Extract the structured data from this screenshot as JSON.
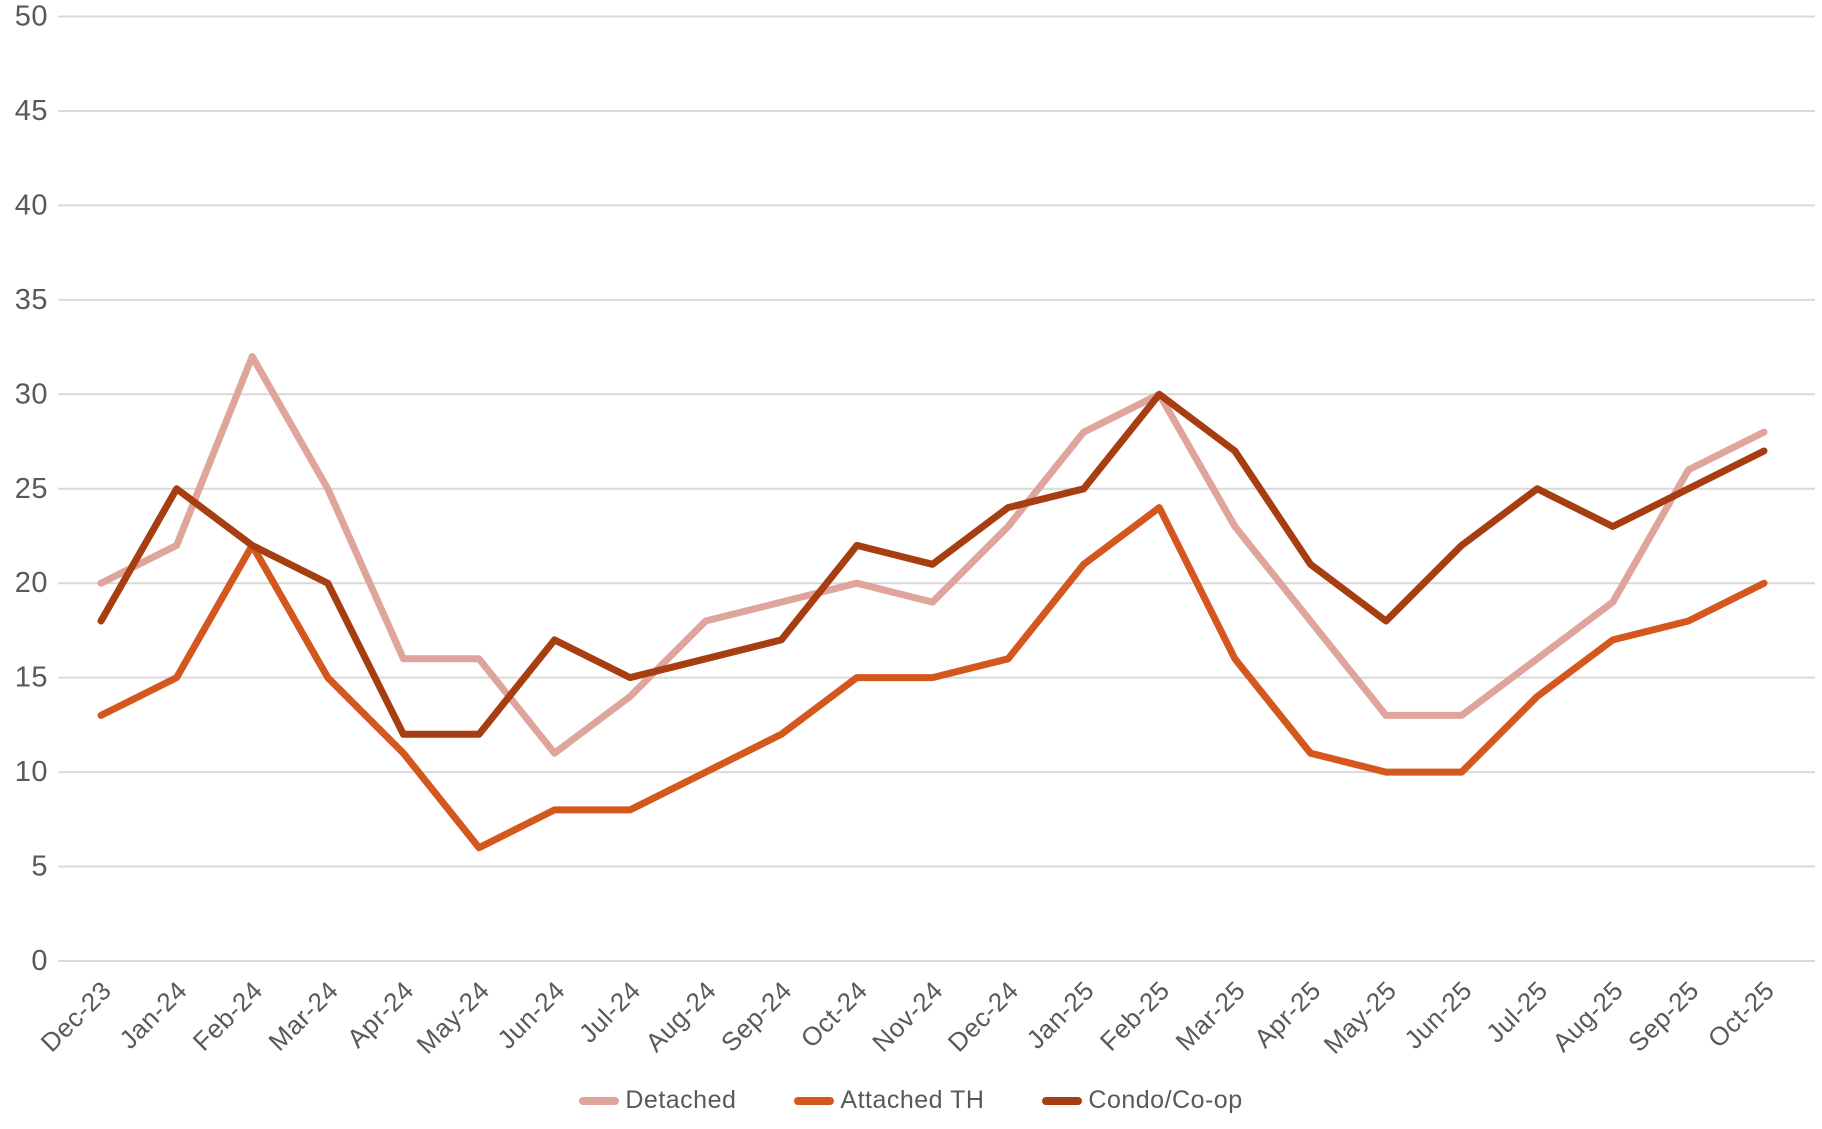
{
  "chart_data": {
    "type": "line",
    "title": "",
    "xlabel": "",
    "ylabel": "",
    "grid": true,
    "legend_position": "bottom",
    "categories": [
      "Dec-23",
      "Jan-24",
      "Feb-24",
      "Mar-24",
      "Apr-24",
      "May-24",
      "Jun-24",
      "Jul-24",
      "Aug-24",
      "Sep-24",
      "Oct-24",
      "Nov-24",
      "Dec-24",
      "Jan-25",
      "Feb-25",
      "Mar-25",
      "Apr-25",
      "May-25",
      "Jun-25",
      "Jul-25",
      "Aug-25",
      "Sep-25",
      "Oct-25"
    ],
    "series": [
      {
        "name": "Detached",
        "color": "#dfa49b",
        "values": [
          20,
          22,
          32,
          25,
          16,
          16,
          11,
          14,
          18,
          19,
          20,
          19,
          23,
          28,
          30,
          23,
          18,
          13,
          13,
          16,
          19,
          26,
          28
        ]
      },
      {
        "name": "Attached TH",
        "color": "#d4571d",
        "values": [
          13,
          15,
          22,
          15,
          11,
          6,
          8,
          8,
          10,
          12,
          15,
          15,
          16,
          21,
          24,
          16,
          11,
          10,
          10,
          14,
          17,
          18,
          20
        ]
      },
      {
        "name": "Condo/Co-op",
        "color": "#a63e12",
        "values": [
          18,
          25,
          22,
          20,
          12,
          12,
          17,
          15,
          16,
          17,
          22,
          21,
          24,
          25,
          30,
          27,
          21,
          18,
          22,
          25,
          23,
          25,
          27
        ]
      }
    ],
    "y_axis": {
      "min": 0,
      "max": 50,
      "step": 5,
      "tick_labels": [
        "0",
        "5",
        "10",
        "15",
        "20",
        "25",
        "30",
        "35",
        "40",
        "45",
        "50"
      ]
    },
    "colors": {
      "axis_text": "#58595b",
      "gridline": "#d9d9d9",
      "background": "#ffffff"
    }
  }
}
